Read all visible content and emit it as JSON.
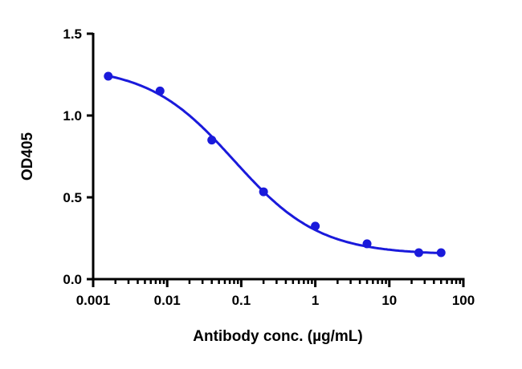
{
  "chart_data": {
    "type": "scatter",
    "title": "",
    "xlabel": "Antibody conc. (µg/mL)",
    "ylabel": "OD405",
    "xscale": "log",
    "xlim": [
      0.001,
      100
    ],
    "ylim": [
      0,
      1.5
    ],
    "x_ticks": [
      0.001,
      0.01,
      0.1,
      1,
      10,
      100
    ],
    "x_tick_labels": [
      "0.001",
      "0.01",
      "0.1",
      "1",
      "10",
      "100"
    ],
    "y_ticks": [
      0,
      0.5,
      1.0,
      1.5
    ],
    "y_tick_labels": [
      "0.0",
      "0.5",
      "1.0",
      "1.5"
    ],
    "grid": false,
    "color": "#1a1adb",
    "series": [
      {
        "name": "OD405",
        "x": [
          0.0016,
          0.008,
          0.04,
          0.2,
          1,
          5,
          25,
          50
        ],
        "y": [
          1.24,
          1.15,
          0.85,
          0.534,
          0.324,
          0.216,
          0.162,
          0.162
        ]
      }
    ],
    "fit": {
      "model": "4PL",
      "top": 1.3,
      "bottom": 0.15,
      "ec50": 0.08,
      "hill": 0.75
    }
  }
}
